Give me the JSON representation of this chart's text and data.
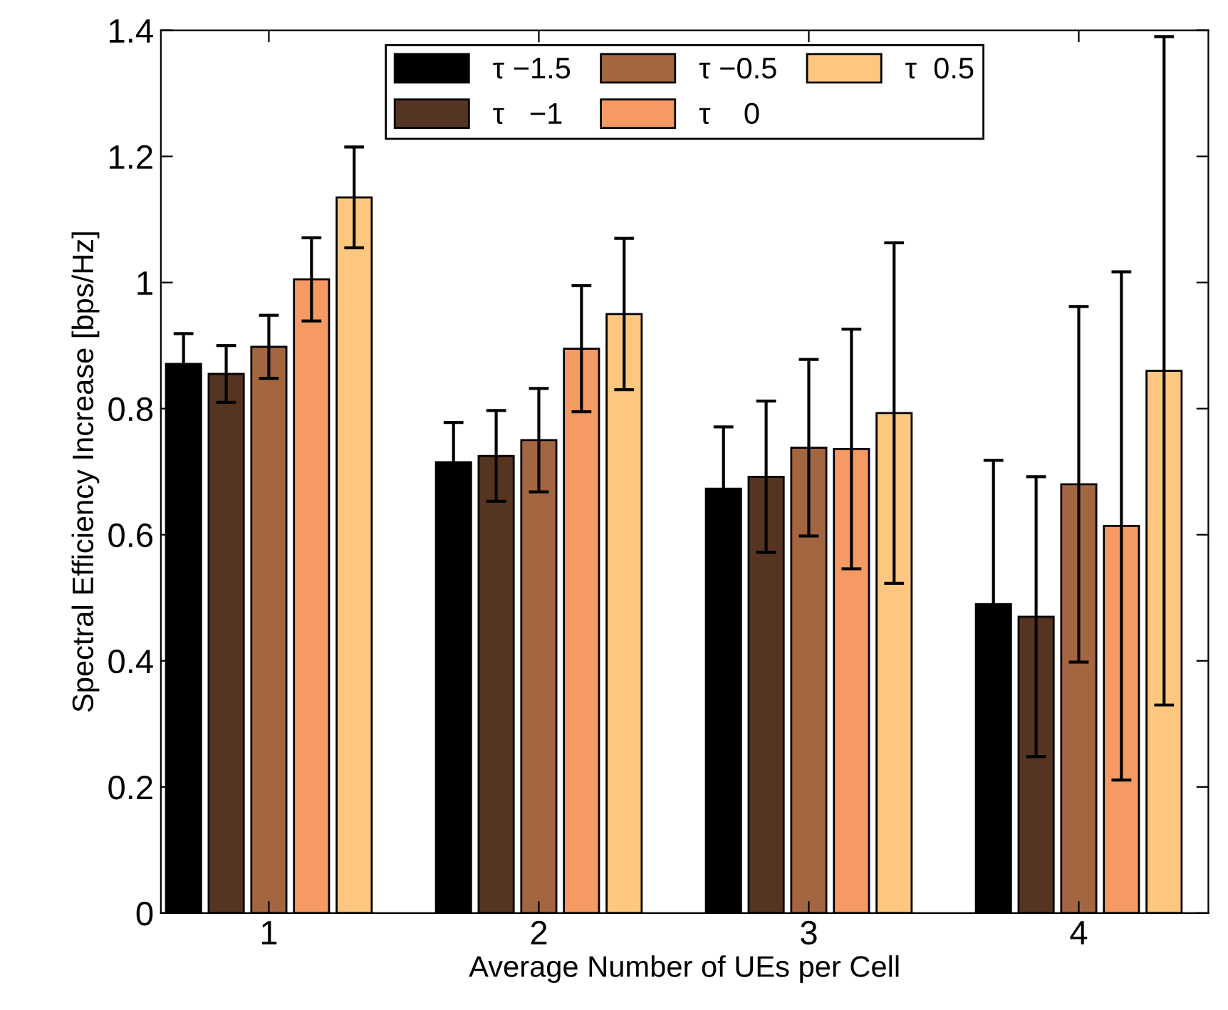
{
  "chart_data": {
    "type": "bar",
    "xlabel": "Average Number of UEs per Cell",
    "ylabel": "Spectral Efficiency Increase [bps/Hz]",
    "categories": [
      "1",
      "2",
      "3",
      "4"
    ],
    "series": [
      {
        "name": "τ −1.5",
        "color": "#000000",
        "values": [
          0.871,
          0.715,
          0.673,
          0.49
        ],
        "errors": [
          0.048,
          0.063,
          0.098,
          0.228
        ]
      },
      {
        "name": "τ   −1",
        "color": "#553421",
        "values": [
          0.855,
          0.725,
          0.692,
          0.47
        ],
        "errors": [
          0.045,
          0.072,
          0.12,
          0.222
        ]
      },
      {
        "name": "τ −0.5",
        "color": "#a46640",
        "values": [
          0.898,
          0.75,
          0.738,
          0.68
        ],
        "errors": [
          0.05,
          0.082,
          0.14,
          0.282
        ]
      },
      {
        "name": "τ    0",
        "color": "#f49a62",
        "values": [
          1.005,
          0.895,
          0.736,
          0.614
        ],
        "errors": [
          0.066,
          0.1,
          0.19,
          0.403
        ]
      },
      {
        "name": "τ  0.5",
        "color": "#fec77f",
        "values": [
          1.135,
          0.95,
          0.793,
          0.86
        ],
        "errors": [
          0.08,
          0.12,
          0.27,
          0.53
        ]
      }
    ],
    "ylim": [
      0,
      1.4
    ],
    "yticks": [
      0,
      0.2,
      0.4,
      0.6,
      0.8,
      1,
      1.2,
      1.4
    ],
    "legend": "top",
    "grid": false
  }
}
